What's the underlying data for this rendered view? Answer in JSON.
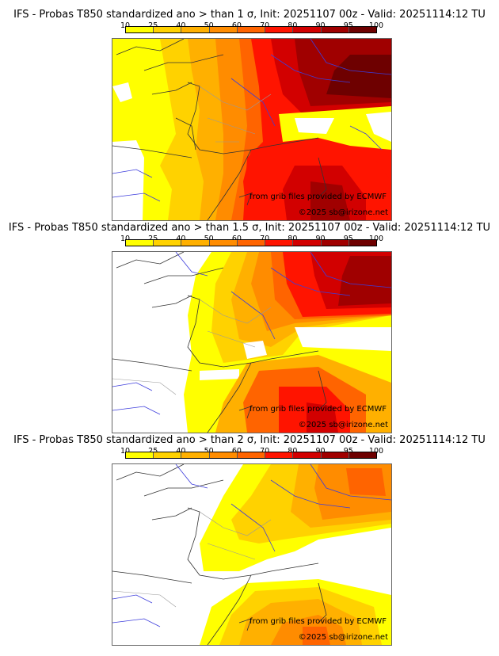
{
  "colorbar": {
    "ticks": [
      "10",
      "25",
      "40",
      "50",
      "60",
      "70",
      "80",
      "90",
      "95",
      "100"
    ],
    "colors": [
      "#ffff00",
      "#ffd200",
      "#ffb000",
      "#ff8c00",
      "#ff6400",
      "#ff1400",
      "#d20000",
      "#a00000",
      "#6e0000"
    ]
  },
  "panels": [
    {
      "title": "IFS - Probas T850  standardized ano > than 1 σ, Init: 20251107 00z - Valid: 20251114:12 TU",
      "credit_source": "from grib files provided by ECMWF",
      "credit_copyright": "©2025 sb@irizone.net"
    },
    {
      "title": "IFS - Probas T850  standardized ano > than 1.5 σ, Init: 20251107 00z - Valid: 20251114:12 TU",
      "credit_source": "from grib files provided by ECMWF",
      "credit_copyright": "©2025 sb@irizone.net"
    },
    {
      "title": "IFS - Probas T850  standardized ano > than 2 σ, Init: 20251107 00z - Valid: 20251114:12 TU",
      "credit_source": "from grib files provided by ECMWF",
      "credit_copyright": "©2025 sb@irizone.net"
    }
  ]
}
